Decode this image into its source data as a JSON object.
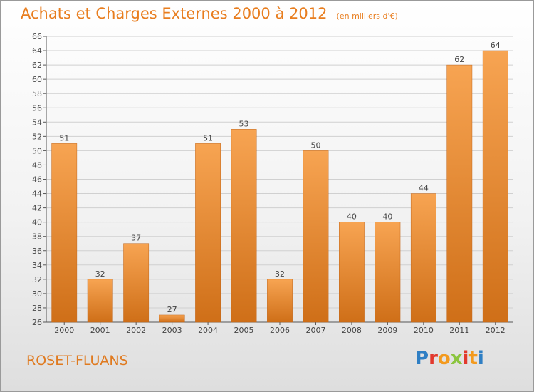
{
  "header": {
    "title": "Achats et Charges Externes 2000 à 2012",
    "subtitle": "(en milliers d'€)"
  },
  "footer": {
    "place": "ROSET-FLUANS",
    "logo_text": "Proxiti"
  },
  "colors": {
    "bar_light": "#f7a452",
    "bar_dark": "#cf6f18",
    "title": "#e87d1e"
  },
  "chart_data": {
    "type": "bar",
    "title": "Achats et Charges Externes 2000 à 2012",
    "subtitle": "(en milliers d'€)",
    "xlabel": "",
    "ylabel": "",
    "categories": [
      "2000",
      "2001",
      "2002",
      "2003",
      "2004",
      "2005",
      "2006",
      "2007",
      "2008",
      "2009",
      "2010",
      "2011",
      "2012"
    ],
    "values": [
      51,
      32,
      37,
      27,
      51,
      53,
      32,
      50,
      40,
      40,
      44,
      62,
      64
    ],
    "ylim": [
      26,
      66
    ],
    "yticks": [
      26,
      28,
      30,
      32,
      34,
      36,
      38,
      40,
      42,
      44,
      46,
      48,
      50,
      52,
      54,
      56,
      58,
      60,
      62,
      64,
      66
    ],
    "grid": true,
    "legend": "none"
  }
}
